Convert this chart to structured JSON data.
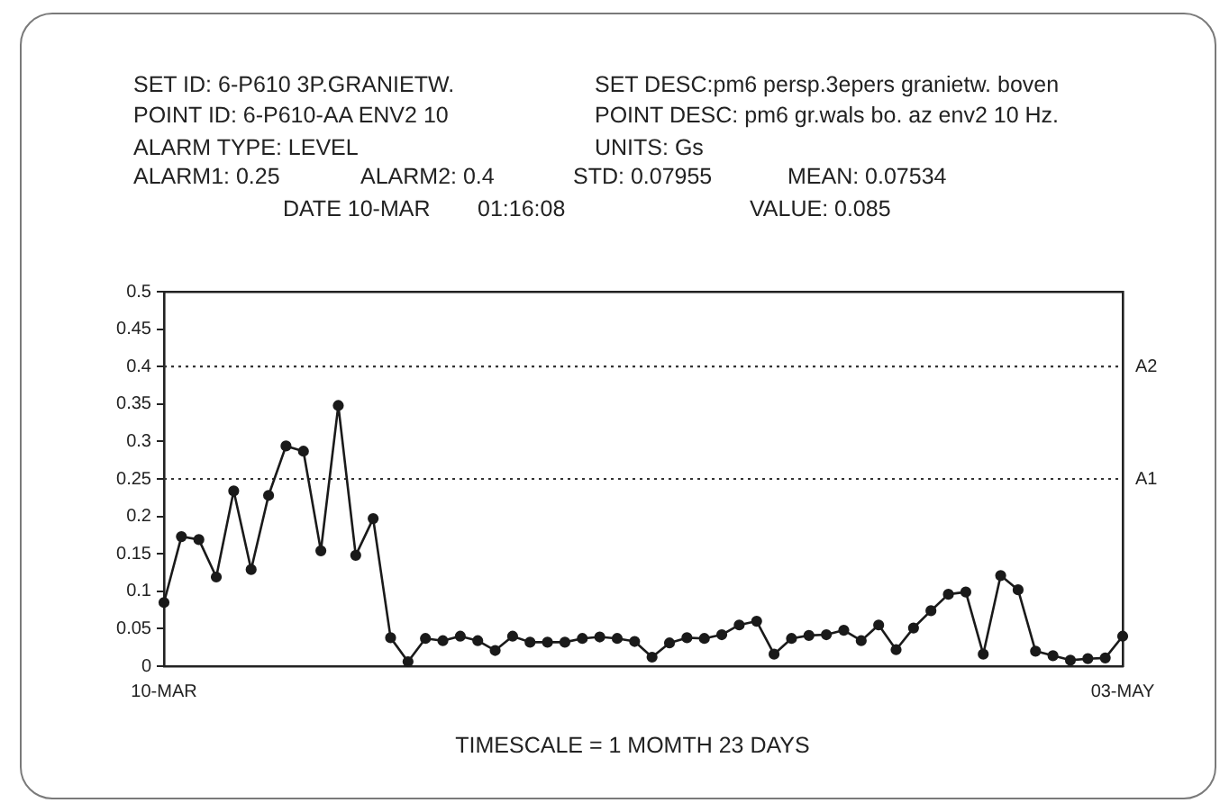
{
  "chart_data": {
    "type": "line",
    "xlabel": "TIMESCALE = 1 MOMTH 23 DAYS",
    "annotations": [
      "SET ID: 6-P610 3P.GRANIETW.",
      "SET DESC:pm6 persp.3epers granietw. boven",
      "POINT ID: 6-P610-AA ENV2 10",
      "POINT DESC: pm6 gr.wals bo. az env2 10 Hz.",
      "ALARM TYPE: LEVEL",
      "UNITS: Gs",
      "ALARM1: 0.25",
      "ALARM2: 0.4",
      "STD: 0.07955",
      "MEAN: 0.07534",
      "DATE 10-MAR",
      "01:16:08",
      "VALUE: 0.085"
    ],
    "categories": [
      "10-MAR",
      null,
      null,
      null,
      null,
      null,
      null,
      null,
      null,
      null,
      null,
      null,
      null,
      null,
      null,
      null,
      null,
      null,
      null,
      null,
      null,
      null,
      null,
      null,
      null,
      null,
      null,
      null,
      null,
      null,
      null,
      null,
      null,
      null,
      null,
      null,
      null,
      null,
      null,
      null,
      null,
      null,
      null,
      null,
      null,
      null,
      null,
      null,
      null,
      null,
      null,
      null,
      null,
      null,
      null,
      "03-MAY"
    ],
    "series": [
      {
        "color": "#1a1a1a",
        "values": [
          0.085,
          0.173,
          0.169,
          0.119,
          0.234,
          0.129,
          0.228,
          0.294,
          0.287,
          0.154,
          0.348,
          0.148,
          0.197,
          0.038,
          0.006,
          0.037,
          0.034,
          0.04,
          0.034,
          0.021,
          0.04,
          0.032,
          0.032,
          0.032,
          0.037,
          0.039,
          0.037,
          0.033,
          0.012,
          0.031,
          0.038,
          0.037,
          0.042,
          0.055,
          0.06,
          0.016,
          0.037,
          0.041,
          0.042,
          0.048,
          0.034,
          0.055,
          0.022,
          0.051,
          0.074,
          0.096,
          0.099,
          0.016,
          0.121,
          0.102,
          0.02,
          0.014,
          0.008,
          0.01,
          0.011,
          0.04
        ]
      }
    ],
    "ylim": [
      0,
      0.5
    ],
    "yticks": [
      0,
      0.05,
      0.1,
      0.15,
      0.2,
      0.25,
      0.3,
      0.35,
      0.4,
      0.45,
      0.5
    ],
    "ref_lines": [
      {
        "axis": "y",
        "value": 0.4,
        "label": "A2",
        "line_style": "dotted"
      },
      {
        "axis": "y",
        "value": 0.25,
        "label": "A1",
        "line_style": "dotted"
      }
    ],
    "marker": "circle",
    "line_style": "solid"
  }
}
